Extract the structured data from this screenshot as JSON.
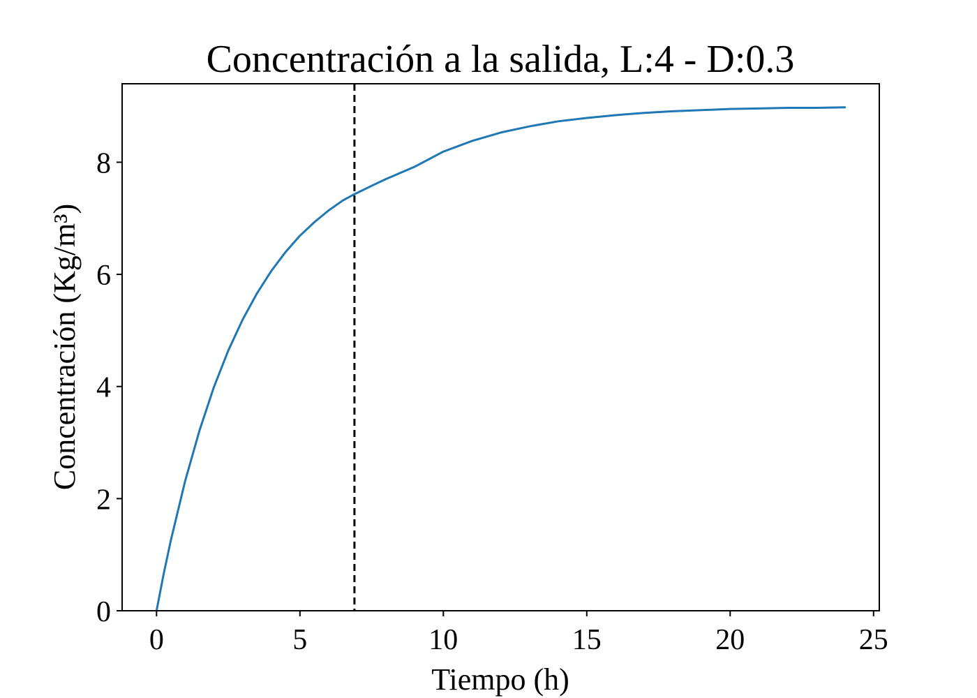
{
  "chart_data": {
    "type": "line",
    "title": "Concentración a la salida, L:4 - D:0.3",
    "xlabel": "Tiempo (h)",
    "ylabel": "Concentración (Kg/m³)",
    "xlim": [
      -1.2,
      25.2
    ],
    "ylim": [
      0,
      9.4
    ],
    "xticks": [
      0,
      5,
      10,
      15,
      20,
      25
    ],
    "yticks": [
      0,
      2,
      4,
      6,
      8
    ],
    "grid": false,
    "series": [
      {
        "color": "#1f77b4",
        "x": [
          0,
          0.25,
          0.5,
          1,
          1.5,
          2,
          2.5,
          3,
          3.5,
          4,
          4.5,
          5,
          5.5,
          6,
          6.5,
          6.9,
          7.5,
          8,
          9,
          10,
          11,
          12,
          13,
          14,
          15,
          16,
          17,
          18,
          19,
          20,
          21,
          22,
          23,
          24
        ],
        "y": [
          0,
          0.66,
          1.26,
          2.32,
          3.22,
          3.99,
          4.64,
          5.19,
          5.66,
          6.06,
          6.4,
          6.69,
          6.93,
          7.14,
          7.32,
          7.43,
          7.58,
          7.7,
          7.92,
          8.19,
          8.38,
          8.53,
          8.64,
          8.73,
          8.79,
          8.84,
          8.88,
          8.91,
          8.93,
          8.95,
          8.96,
          8.97,
          8.97,
          8.98
        ]
      }
    ],
    "vline": {
      "x": 6.9,
      "style": "dashed",
      "color": "#000000"
    }
  }
}
